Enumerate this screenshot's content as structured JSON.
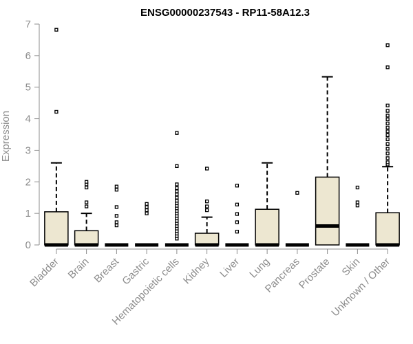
{
  "chart_data": {
    "type": "box",
    "title": "ENSG00000237543 - RP11-58A12.3",
    "xlabel": "",
    "ylabel": "Expression",
    "ylim": [
      0,
      7
    ],
    "yticks": [
      0,
      1,
      2,
      3,
      4,
      5,
      6,
      7
    ],
    "grid": false,
    "colors": {
      "box_fill": "#ede7d1",
      "stroke": "#000000",
      "axis": "#8c8c8c",
      "title": "#000000"
    },
    "categories": [
      "Bladder",
      "Brain",
      "Breast",
      "Gastric",
      "Hematopoietic cells",
      "Kidney",
      "Liver",
      "Lung",
      "Pancreas",
      "Prostate",
      "Skin",
      "Unknown / Other"
    ],
    "boxes": [
      {
        "category": "Bladder",
        "min": 0,
        "q1": 0,
        "median": 0,
        "q3": 1.05,
        "max": 2.6,
        "outliers": [
          4.22,
          6.82
        ]
      },
      {
        "category": "Brain",
        "min": 0,
        "q1": 0,
        "median": 0,
        "q3": 0.45,
        "max": 1.0,
        "outliers": [
          1.22,
          1.35,
          1.82,
          1.92,
          2.0
        ]
      },
      {
        "category": "Breast",
        "min": 0,
        "q1": 0,
        "median": 0,
        "q3": 0,
        "max": 0,
        "outliers": [
          0.62,
          0.72,
          0.92,
          1.2,
          1.75,
          1.85
        ]
      },
      {
        "category": "Gastric",
        "min": 0,
        "q1": 0,
        "median": 0,
        "q3": 0,
        "max": 0,
        "outliers": [
          1.0,
          1.1,
          1.2,
          1.3
        ]
      },
      {
        "category": "Hematopoietic cells",
        "min": 0,
        "q1": 0,
        "median": 0,
        "q3": 0,
        "max": 0,
        "outliers": [
          0.2,
          0.28,
          0.36,
          0.44,
          0.52,
          0.6,
          0.68,
          0.76,
          0.84,
          0.92,
          1.0,
          1.08,
          1.16,
          1.24,
          1.32,
          1.4,
          1.5,
          1.6,
          1.7,
          1.8,
          1.92,
          2.5,
          3.55
        ]
      },
      {
        "category": "Kidney",
        "min": 0,
        "q1": 0,
        "median": 0,
        "q3": 0.37,
        "max": 0.88,
        "outliers": [
          1.1,
          1.22,
          1.38,
          2.42
        ]
      },
      {
        "category": "Liver",
        "min": 0,
        "q1": 0,
        "median": 0,
        "q3": 0,
        "max": 0,
        "outliers": [
          0.42,
          0.72,
          0.98,
          1.28,
          1.88
        ]
      },
      {
        "category": "Lung",
        "min": 0,
        "q1": 0,
        "median": 0,
        "q3": 1.13,
        "max": 2.6,
        "outliers": []
      },
      {
        "category": "Pancreas",
        "min": 0,
        "q1": 0,
        "median": 0,
        "q3": 0,
        "max": 0,
        "outliers": [
          1.65
        ]
      },
      {
        "category": "Prostate",
        "min": 0,
        "q1": 0,
        "median": 0.6,
        "q3": 2.15,
        "max": 5.33,
        "outliers": []
      },
      {
        "category": "Skin",
        "min": 0,
        "q1": 0,
        "median": 0,
        "q3": 0,
        "max": 0,
        "outliers": [
          1.25,
          1.35,
          1.82
        ]
      },
      {
        "category": "Unknown / Other",
        "min": 0,
        "q1": 0,
        "median": 0,
        "q3": 1.02,
        "max": 2.48,
        "outliers": [
          2.55,
          2.62,
          2.75,
          2.9,
          3.05,
          3.2,
          3.35,
          3.48,
          3.6,
          3.72,
          3.85,
          3.98,
          4.1,
          4.25,
          4.42,
          5.63,
          6.33
        ]
      }
    ]
  }
}
